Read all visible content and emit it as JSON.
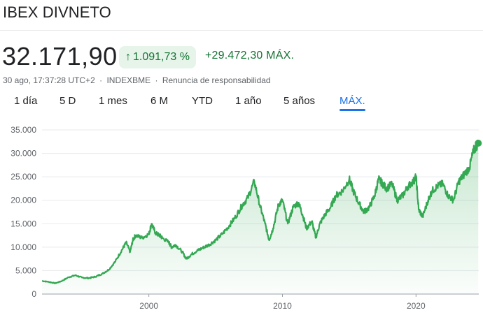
{
  "header": {
    "title": "IBEX DIVNETO"
  },
  "quote": {
    "price": "32.171,90",
    "change_percent": "1.091,73 %",
    "change_value": "+29.472,30 MÁX.",
    "timestamp": "30 ago, 17:37:28 UTC+2",
    "exchange": "INDEXBME",
    "disclaimer": "Renuncia de responsabilidad"
  },
  "icons": {
    "trend": "arrow-up-icon"
  },
  "colors": {
    "positive": "#137333",
    "line": "#34a853",
    "accent": "#1a73e8",
    "badge_bg": "#e6f4ea"
  },
  "tabs": [
    {
      "label": "1 día",
      "active": false
    },
    {
      "label": "5 D",
      "active": false
    },
    {
      "label": "1 mes",
      "active": false
    },
    {
      "label": "6 M",
      "active": false
    },
    {
      "label": "YTD",
      "active": false
    },
    {
      "label": "1 año",
      "active": false
    },
    {
      "label": "5 años",
      "active": false
    },
    {
      "label": "MÁX.",
      "active": true
    }
  ],
  "chart_data": {
    "type": "area",
    "title": "",
    "xlabel": "",
    "ylabel": "",
    "xlim": [
      1992.0,
      2024.7
    ],
    "ylim": [
      0,
      35000
    ],
    "y_ticks": [
      0,
      5000,
      10000,
      15000,
      20000,
      25000,
      30000,
      35000
    ],
    "y_tick_labels": [
      "0",
      "5.000",
      "10.000",
      "15.000",
      "20.000",
      "25.000",
      "30.000",
      "35.000"
    ],
    "x_ticks": [
      2000,
      2010,
      2020
    ],
    "x_tick_labels": [
      "2000",
      "2010",
      "2020"
    ],
    "grid": true,
    "series": [
      {
        "x": [
          1992.0,
          1992.5,
          1993.0,
          1993.5,
          1994.0,
          1994.5,
          1995.0,
          1995.5,
          1996.0,
          1996.5,
          1997.0,
          1997.5,
          1998.0,
          1998.3,
          1998.6,
          1998.8,
          1999.0,
          1999.5,
          2000.0,
          2000.2,
          2000.5,
          2000.8,
          2001.0,
          2001.5,
          2001.7,
          2002.0,
          2002.5,
          2002.8,
          2003.2,
          2003.6,
          2004.0,
          2004.5,
          2005.0,
          2005.5,
          2006.0,
          2006.5,
          2007.0,
          2007.4,
          2007.9,
          2008.3,
          2008.7,
          2009.0,
          2009.3,
          2009.7,
          2010.0,
          2010.4,
          2010.8,
          2011.2,
          2011.5,
          2011.8,
          2012.2,
          2012.5,
          2012.8,
          2013.2,
          2013.6,
          2014.0,
          2014.5,
          2015.0,
          2015.3,
          2015.7,
          2016.1,
          2016.5,
          2016.9,
          2017.2,
          2017.5,
          2017.8,
          2018.2,
          2018.6,
          2019.0,
          2019.4,
          2019.8,
          2020.0,
          2020.2,
          2020.5,
          2020.9,
          2021.2,
          2021.6,
          2022.0,
          2022.4,
          2022.8,
          2023.2,
          2023.6,
          2024.0,
          2024.3,
          2024.66
        ],
        "values": [
          2800,
          2600,
          2300,
          2800,
          3600,
          4000,
          3500,
          3400,
          3700,
          4300,
          5200,
          7000,
          9500,
          11000,
          9000,
          11500,
          12500,
          12000,
          12800,
          15000,
          13000,
          12500,
          12000,
          11000,
          10000,
          10500,
          9000,
          7500,
          8500,
          9200,
          9800,
          10500,
          11500,
          12800,
          14500,
          16500,
          19000,
          20500,
          24000,
          19000,
          15000,
          11500,
          14000,
          19000,
          20000,
          15000,
          18500,
          19500,
          17000,
          14000,
          15500,
          12000,
          15000,
          17000,
          18500,
          21000,
          22000,
          24500,
          22000,
          19500,
          17500,
          18500,
          21000,
          24500,
          23500,
          22500,
          23500,
          20000,
          21000,
          23000,
          24000,
          25000,
          18000,
          16500,
          20000,
          22000,
          23000,
          23500,
          21000,
          20000,
          24000,
          25500,
          27000,
          30500,
          32171.9
        ]
      }
    ]
  }
}
